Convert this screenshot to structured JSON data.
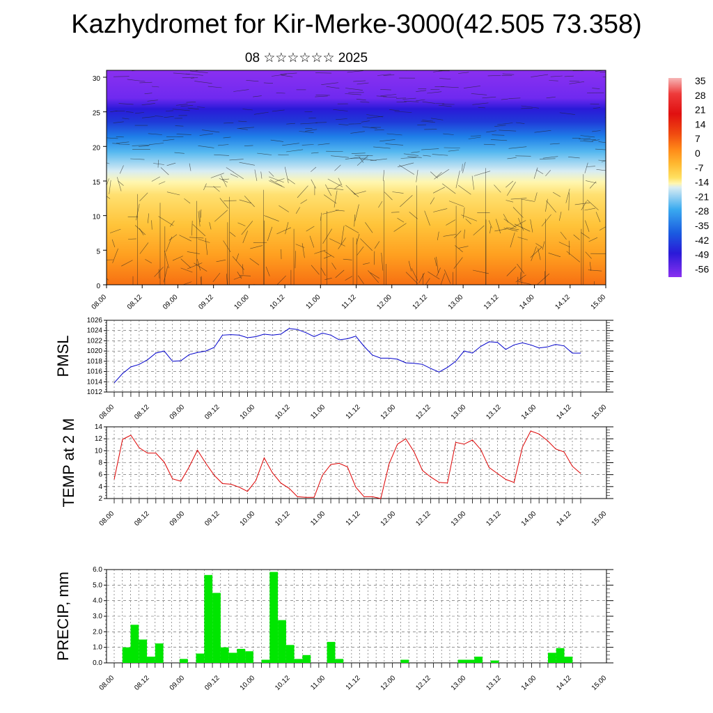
{
  "title": "Kazhydromet for Kir-Merke-3000(42.505 73.358)",
  "subtitle": "08 ☆☆☆☆☆☆ 2025",
  "colors": {
    "pmsl": "#0000cc",
    "temp": "#dd0000",
    "precip": "#00e600"
  },
  "chart_data": [
    {
      "type": "heatmap",
      "name": "cross-section",
      "x_ticks": [
        "08.00",
        "08.12",
        "09.00",
        "09.12",
        "10.00",
        "10.12",
        "11.00",
        "11.12",
        "12.00",
        "12.12",
        "13.00",
        "13.12",
        "14.00",
        "14.12",
        "15.00"
      ],
      "y_ticks": [
        "0",
        "5",
        "10",
        "15",
        "20",
        "25",
        "30"
      ],
      "ylim": [
        0,
        31
      ],
      "colorbar": {
        "labels": [
          "35",
          "28",
          "21",
          "14",
          "7",
          "0",
          "-7",
          "-14",
          "-21",
          "-28",
          "-35",
          "-42",
          "-49",
          "-56"
        ]
      }
    },
    {
      "type": "line",
      "name": "pmsl",
      "ylabel": "PMSL",
      "x_ticks": [
        "08.00",
        "08.12",
        "09.00",
        "09.12",
        "10.00",
        "10.12",
        "11.00",
        "11.12",
        "12.00",
        "12.12",
        "13.00",
        "13.12",
        "14.00",
        "14.12",
        "15.00"
      ],
      "y_ticks": [
        "1012",
        "1014",
        "1016",
        "1018",
        "1020",
        "1022",
        "1024",
        "1026"
      ],
      "ylim": [
        1012,
        1026
      ],
      "values": [
        1013.8,
        1015.6,
        1016.9,
        1017.4,
        1018.3,
        1019.6,
        1020.0,
        1018.0,
        1018.1,
        1019.3,
        1019.7,
        1020.0,
        1020.7,
        1023.1,
        1023.2,
        1023.1,
        1022.6,
        1022.8,
        1023.3,
        1023.1,
        1023.3,
        1024.4,
        1024.2,
        1023.6,
        1022.8,
        1023.5,
        1023.1,
        1022.2,
        1022.4,
        1022.9,
        1020.9,
        1019.2,
        1018.6,
        1018.6,
        1018.4,
        1017.7,
        1017.6,
        1017.4,
        1016.6,
        1015.9,
        1016.8,
        1018.0,
        1020.0,
        1019.6,
        1020.9,
        1021.8,
        1021.7,
        1020.3,
        1021.2,
        1021.6,
        1021.2,
        1020.6,
        1020.8,
        1021.3,
        1021.0,
        1019.6,
        1019.6
      ]
    },
    {
      "type": "line",
      "name": "temp",
      "ylabel": "TEMP at 2 M",
      "x_ticks": [
        "08.00",
        "08.12",
        "09.00",
        "09.12",
        "10.00",
        "10.12",
        "11.00",
        "11.12",
        "12.00",
        "12.12",
        "13.00",
        "13.12",
        "14.00",
        "14.12",
        "15.00"
      ],
      "y_ticks": [
        "2",
        "4",
        "6",
        "8",
        "10",
        "12",
        "14"
      ],
      "ylim": [
        2,
        14
      ],
      "values": [
        5.2,
        11.9,
        12.6,
        10.5,
        9.6,
        9.6,
        8.1,
        5.3,
        4.9,
        7.3,
        10.1,
        7.9,
        5.9,
        4.5,
        4.4,
        3.9,
        3.2,
        5.0,
        8.8,
        6.3,
        4.6,
        3.7,
        2.3,
        2.2,
        2.2,
        5.9,
        7.7,
        7.9,
        7.3,
        3.9,
        2.3,
        2.3,
        2.0,
        7.8,
        11.1,
        12.0,
        9.8,
        6.7,
        5.6,
        4.7,
        4.6,
        11.4,
        11.1,
        11.8,
        10.2,
        7.2,
        6.2,
        5.2,
        4.7,
        10.6,
        13.3,
        12.8,
        11.7,
        10.3,
        9.8,
        7.4,
        6.2
      ]
    },
    {
      "type": "bar",
      "name": "precip",
      "ylabel": "PRECIP, mm",
      "x_ticks": [
        "08.00",
        "08.12",
        "09.00",
        "09.12",
        "10.00",
        "10.12",
        "11.00",
        "11.12",
        "12.00",
        "12.12",
        "13.00",
        "13.12",
        "14.00",
        "14.12",
        "15.00"
      ],
      "y_ticks": [
        "0.0",
        "1.0",
        "2.0",
        "3.0",
        "4.0",
        "5.0",
        "6.0"
      ],
      "ylim": [
        0,
        6
      ],
      "values": [
        0,
        0,
        1.0,
        2.45,
        1.5,
        0.4,
        1.25,
        0,
        0,
        0.25,
        0,
        0.6,
        5.65,
        4.5,
        1.0,
        0.65,
        0.9,
        0.75,
        0,
        0.2,
        5.85,
        2.75,
        1.15,
        0.25,
        0.5,
        0,
        0,
        1.35,
        0.25,
        0,
        0,
        0,
        0,
        0,
        0,
        0,
        0.2,
        0,
        0,
        0,
        0,
        0,
        0,
        0.2,
        0.2,
        0.4,
        0,
        0.15,
        0,
        0,
        0,
        0,
        0,
        0,
        0.65,
        0.95,
        0.4,
        0
      ]
    }
  ]
}
